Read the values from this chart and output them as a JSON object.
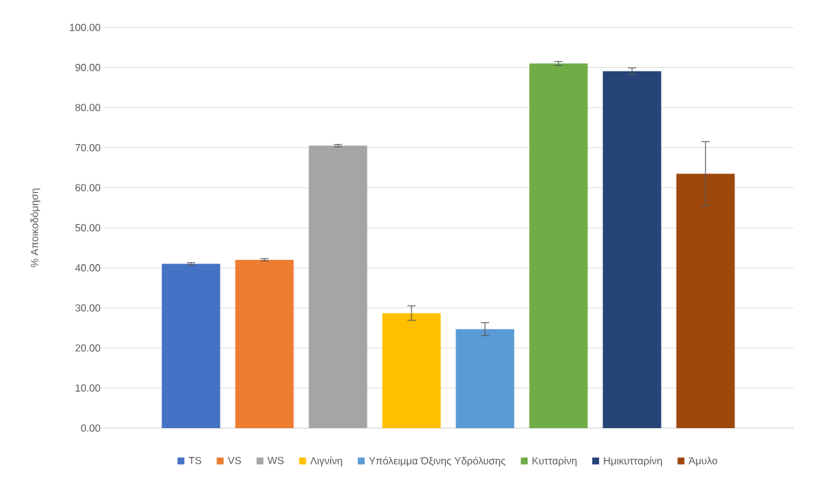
{
  "chart_data": {
    "type": "bar",
    "ylabel": "% Αποικοδόμηση",
    "categories": [
      null
    ],
    "series": [
      {
        "name": "TS",
        "color": "#4472c4",
        "values": [
          41.0
        ],
        "errors": [
          0.3
        ]
      },
      {
        "name": "VS",
        "color": "#ed7d31",
        "values": [
          42.0
        ],
        "errors": [
          0.3
        ]
      },
      {
        "name": "WS",
        "color": "#a5a5a5",
        "values": [
          70.5
        ],
        "errors": [
          0.3
        ]
      },
      {
        "name": "Λιγνίνη",
        "color": "#ffc000",
        "values": [
          28.7
        ],
        "errors": [
          1.8
        ]
      },
      {
        "name": "Υπόλειμμα Όξινης Υδρόλυσης",
        "color": "#5b9bd5",
        "values": [
          24.7
        ],
        "errors": [
          1.6
        ]
      },
      {
        "name": "Κυτταρίνη",
        "color": "#70ad47",
        "values": [
          91.0
        ],
        "errors": [
          0.5
        ]
      },
      {
        "name": "Ημικυτταρίνη",
        "color": "#264478",
        "values": [
          89.1
        ],
        "errors": [
          0.8
        ]
      },
      {
        "name": "Άμυλο",
        "color": "#9e480e",
        "values": [
          63.5
        ],
        "errors": [
          8.0
        ]
      }
    ],
    "ylim": [
      0,
      100
    ],
    "yticks": [
      {
        "value": 0,
        "label": "0.00"
      },
      {
        "value": 10,
        "label": "10.00"
      },
      {
        "value": 20,
        "label": "20.00"
      },
      {
        "value": 30,
        "label": "30.00"
      },
      {
        "value": 40,
        "label": "40.00"
      },
      {
        "value": 50,
        "label": "50.00"
      },
      {
        "value": 60,
        "label": "60.00"
      },
      {
        "value": 70,
        "label": "70.00"
      },
      {
        "value": 80,
        "label": "80.00"
      },
      {
        "value": 90,
        "label": "90.00"
      },
      {
        "value": 100,
        "label": "100.00"
      }
    ],
    "grid": "y",
    "legend": "bottom",
    "tick_labels": "y"
  }
}
